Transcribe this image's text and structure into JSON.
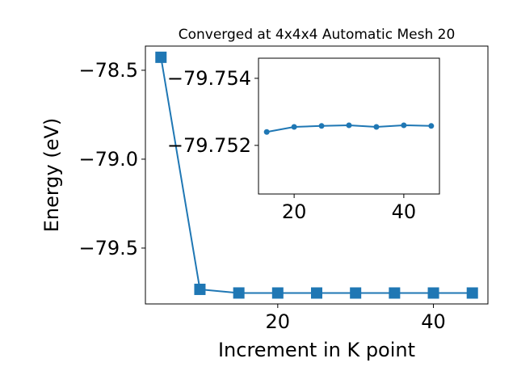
{
  "chart_data": [
    {
      "type": "line",
      "title": "Converged at 4x4x4 Automatic Mesh 20",
      "xlabel": "Increment in K point",
      "ylabel": "Energy (eV)",
      "x": [
        5,
        10,
        15,
        20,
        25,
        30,
        35,
        40,
        45
      ],
      "series": [
        {
          "color": "#1f77b4",
          "marker": "square",
          "values": [
            -78.427,
            -79.732,
            -79.7524,
            -79.75255,
            -79.75258,
            -79.7526,
            -79.75255,
            -79.7526,
            -79.75258
          ]
        }
      ],
      "xlim": [
        3,
        47
      ],
      "ylim": [
        -79.814,
        -78.364
      ],
      "xticks": [
        20,
        40
      ],
      "yticks": [
        {
          "value": -78.5,
          "label": "−78.5"
        },
        {
          "value": -79.0,
          "label": "−79.0"
        },
        {
          "value": -79.5,
          "label": "−79.5"
        }
      ]
    },
    {
      "type": "line",
      "x": [
        15,
        20,
        25,
        30,
        35,
        40,
        45
      ],
      "series": [
        {
          "color": "#1f77b4",
          "marker": "circle",
          "values": [
            -79.7524,
            -79.75255,
            -79.75258,
            -79.7526,
            -79.75255,
            -79.7526,
            -79.75258
          ]
        }
      ],
      "xlim": [
        13.5,
        46.5
      ],
      "ylim": [
        -79.75055,
        -79.7546
      ],
      "xticks": [
        20,
        40
      ],
      "yticks": [
        {
          "value": -79.754,
          "label": "−79.754"
        },
        {
          "value": -79.752,
          "label": "−79.752"
        }
      ]
    }
  ]
}
